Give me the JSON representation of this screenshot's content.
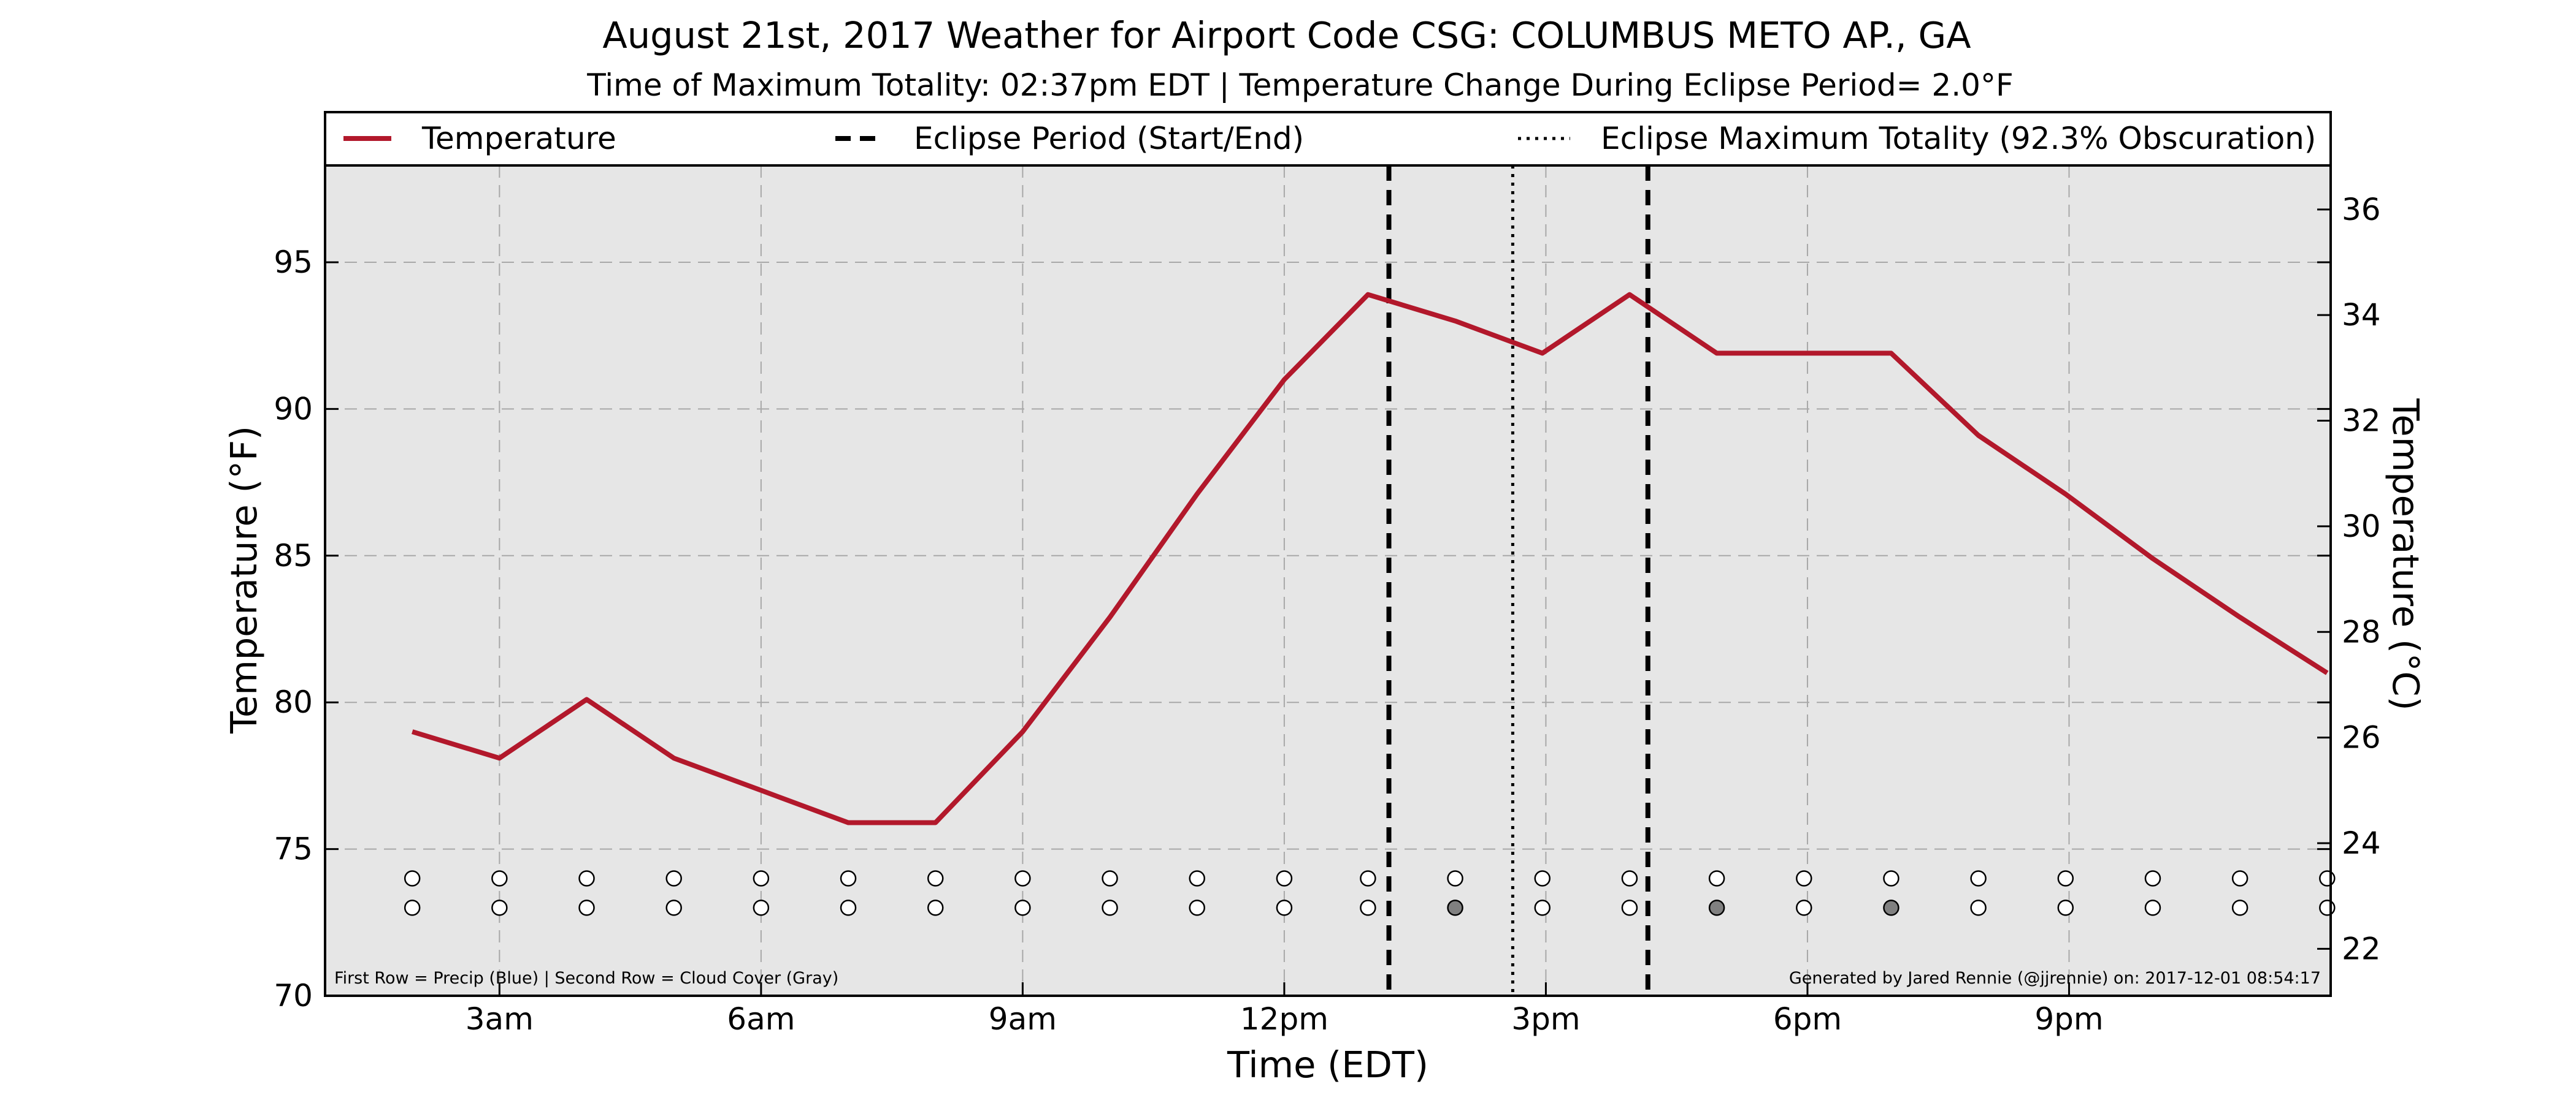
{
  "chart_data": {
    "type": "line",
    "title": "August 21st, 2017 Weather for Airport Code CSG: COLUMBUS METO AP., GA",
    "subtitle": "Time of Maximum Totality: 02:37pm EDT | Temperature Change During Eclipse Period= 2.0°F",
    "xlabel": "Time (EDT)",
    "ylabel": "Temperature (°F)",
    "ylabel_right": "Temperature (°C)",
    "xlim": [
      1.0,
      24.0
    ],
    "ylim": [
      70,
      98.3
    ],
    "xticks": [
      {
        "value": 3,
        "label": "3am"
      },
      {
        "value": 6,
        "label": "6am"
      },
      {
        "value": 9,
        "label": "9am"
      },
      {
        "value": 12,
        "label": "12pm"
      },
      {
        "value": 15,
        "label": "3pm"
      },
      {
        "value": 18,
        "label": "6pm"
      },
      {
        "value": 21,
        "label": "9pm"
      }
    ],
    "yticks": [
      70,
      75,
      80,
      85,
      90,
      95
    ],
    "yticks_right": [
      22,
      24,
      26,
      28,
      30,
      32,
      34,
      36
    ],
    "grid": true,
    "legend_position": "top",
    "legend": [
      {
        "label": "Temperature",
        "style": "solid"
      },
      {
        "label": "Eclipse Period (Start/End)",
        "style": "dashed"
      },
      {
        "label": "Eclipse Maximum Totality (92.3% Obscuration)",
        "style": "dotted"
      }
    ],
    "series": [
      {
        "name": "Temperature",
        "color": "#b2182b",
        "x": [
          2,
          3,
          4,
          5,
          6,
          7,
          8,
          9,
          10,
          11,
          12,
          12.96,
          13.96,
          14.96,
          15.96,
          16.96,
          17.96,
          18.96,
          19.96,
          20.96,
          21.96,
          22.96,
          23.96
        ],
        "y": [
          79,
          78.1,
          80.1,
          78.1,
          77,
          75.9,
          75.9,
          79,
          82.9,
          87.1,
          91,
          93.9,
          93,
          91.9,
          93.9,
          91.9,
          91.9,
          91.9,
          89.1,
          87.1,
          84.9,
          82.9,
          81
        ]
      }
    ],
    "eclipse_start": 13.2,
    "eclipse_end": 16.17,
    "eclipse_max": 14.62,
    "precip_row": {
      "x": [
        2,
        3,
        4,
        5,
        6,
        7,
        8,
        9,
        10,
        11,
        12,
        12.96,
        13.96,
        14.96,
        15.96,
        16.96,
        17.96,
        18.96,
        19.96,
        20.96,
        21.96,
        22.96,
        23.96
      ],
      "y": 74,
      "filled": [
        false,
        false,
        false,
        false,
        false,
        false,
        false,
        false,
        false,
        false,
        false,
        false,
        false,
        false,
        false,
        false,
        false,
        false,
        false,
        false,
        false,
        false,
        false
      ]
    },
    "cloud_row": {
      "x": [
        2,
        3,
        4,
        5,
        6,
        7,
        8,
        9,
        10,
        11,
        12,
        12.96,
        13.96,
        14.96,
        15.96,
        16.96,
        17.96,
        18.96,
        19.96,
        20.96,
        21.96,
        22.96,
        23.96
      ],
      "y": 73,
      "filled": [
        false,
        false,
        false,
        false,
        false,
        false,
        false,
        false,
        false,
        false,
        false,
        false,
        true,
        false,
        false,
        true,
        false,
        true,
        false,
        false,
        false,
        false,
        false
      ]
    },
    "footnote_left": "First Row = Precip (Blue) | Second Row = Cloud Cover (Gray)",
    "footnote_right": "Generated by Jared Rennie (@jjrennie) on: 2017-12-01 08:54:17",
    "colors": {
      "plot_bg": "#e6e6e6",
      "line": "#b2182b",
      "filled_marker": "#808080"
    }
  }
}
